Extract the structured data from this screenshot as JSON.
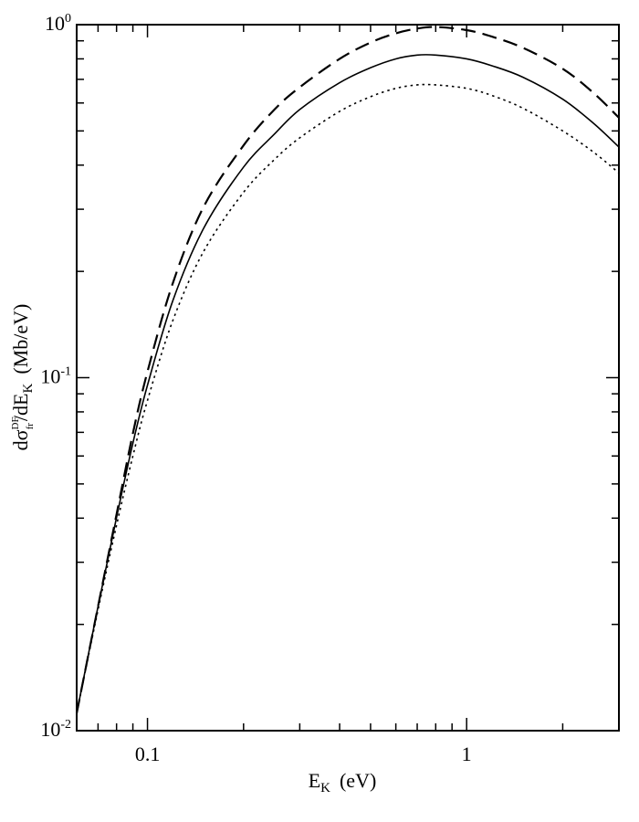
{
  "chart_data": {
    "type": "line",
    "title": "",
    "x_scale": "log",
    "y_scale": "log",
    "xlim": [
      0.06,
      3.0
    ],
    "ylim": [
      0.01,
      1.0
    ],
    "xlabel": {
      "main": "E",
      "sub": "K",
      "unit": "(eV)"
    },
    "ylabel": {
      "prefix": "dσ",
      "sup": "DF",
      "sub": "fr",
      "mid": "/dE",
      "sub2": "K",
      "unit": "(Mb/eV)"
    },
    "x_tick_labels": [
      {
        "value": 0.1,
        "label": "0.1"
      },
      {
        "value": 1,
        "label": "1"
      }
    ],
    "y_tick_labels": [
      {
        "value": 0.01,
        "base": "10",
        "exp": "-2"
      },
      {
        "value": 0.1,
        "base": "10",
        "exp": "-1"
      },
      {
        "value": 1.0,
        "base": "10",
        "exp": "0"
      }
    ],
    "grid": false,
    "legend": "none",
    "series": [
      {
        "style": "solid",
        "points": [
          [
            0.06,
            0.0112
          ],
          [
            0.07,
            0.0225
          ],
          [
            0.08,
            0.0402
          ],
          [
            0.09,
            0.0652
          ],
          [
            0.1,
            0.0952
          ],
          [
            0.12,
            0.165
          ],
          [
            0.15,
            0.265
          ],
          [
            0.2,
            0.395
          ],
          [
            0.25,
            0.49
          ],
          [
            0.3,
            0.575
          ],
          [
            0.4,
            0.685
          ],
          [
            0.5,
            0.755
          ],
          [
            0.6,
            0.8
          ],
          [
            0.7,
            0.82
          ],
          [
            0.8,
            0.82
          ],
          [
            1.0,
            0.8
          ],
          [
            1.2,
            0.765
          ],
          [
            1.5,
            0.71
          ],
          [
            2.0,
            0.615
          ],
          [
            2.5,
            0.525
          ],
          [
            3.0,
            0.45
          ]
        ]
      },
      {
        "style": "dashed",
        "points": [
          [
            0.06,
            0.0112
          ],
          [
            0.07,
            0.0225
          ],
          [
            0.08,
            0.041
          ],
          [
            0.09,
            0.0695
          ],
          [
            0.1,
            0.104
          ],
          [
            0.12,
            0.185
          ],
          [
            0.15,
            0.305
          ],
          [
            0.2,
            0.455
          ],
          [
            0.25,
            0.575
          ],
          [
            0.3,
            0.665
          ],
          [
            0.4,
            0.8
          ],
          [
            0.5,
            0.89
          ],
          [
            0.6,
            0.945
          ],
          [
            0.7,
            0.975
          ],
          [
            0.8,
            0.985
          ],
          [
            1.0,
            0.965
          ],
          [
            1.2,
            0.925
          ],
          [
            1.5,
            0.86
          ],
          [
            2.0,
            0.75
          ],
          [
            2.5,
            0.64
          ],
          [
            3.0,
            0.545
          ]
        ]
      },
      {
        "style": "dotted",
        "points": [
          [
            0.06,
            0.0112
          ],
          [
            0.07,
            0.022
          ],
          [
            0.08,
            0.0382
          ],
          [
            0.09,
            0.06
          ],
          [
            0.1,
            0.0862
          ],
          [
            0.12,
            0.145
          ],
          [
            0.15,
            0.228
          ],
          [
            0.2,
            0.335
          ],
          [
            0.25,
            0.415
          ],
          [
            0.3,
            0.478
          ],
          [
            0.4,
            0.568
          ],
          [
            0.5,
            0.625
          ],
          [
            0.6,
            0.66
          ],
          [
            0.7,
            0.675
          ],
          [
            0.8,
            0.675
          ],
          [
            1.0,
            0.66
          ],
          [
            1.2,
            0.63
          ],
          [
            1.5,
            0.58
          ],
          [
            2.0,
            0.5
          ],
          [
            2.5,
            0.435
          ],
          [
            3.0,
            0.38
          ]
        ]
      }
    ]
  }
}
